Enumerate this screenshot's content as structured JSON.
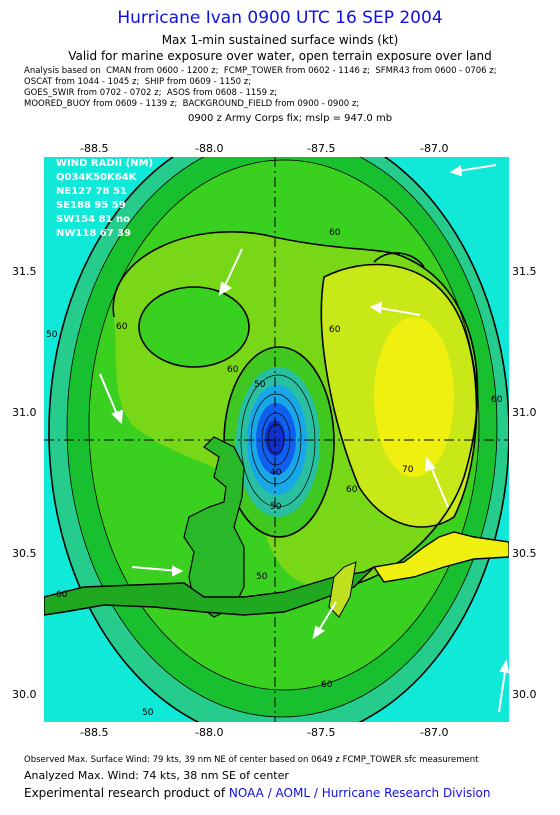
{
  "title": "Hurricane Ivan 0900 UTC 16 SEP 2004",
  "subtitle1": "Max 1-min sustained surface winds (kt)",
  "subtitle2": "Valid for marine exposure over water, open terrain exposure over land",
  "analysis_lines": [
    "Analysis based on  CMAN from 0600 - 1200 z;  FCMP_TOWER from 0602 - 1146 z;  SFMR43 from 0600 - 0706 z;",
    "OSCAT from 1044 - 1045 z;  SHIP from 0609 - 1150 z;",
    "GOES_SWIR from 0702 - 0702 z;  ASOS from 0608 - 1159 z;",
    "MOORED_BUOY from 0609 - 1139 z;  BACKGROUND_FIELD from 0900 - 0900 z;"
  ],
  "fix_line": "0900 z Army Corps fix; mslp = 947.0 mb",
  "wind_radii": {
    "header": "WIND RADII (NM)",
    "columns": "Q034K50K64K",
    "rows": [
      "NE127 78 51",
      "SE188 95 59",
      "SW154 81 no",
      "NW118 67 39"
    ]
  },
  "axes": {
    "lon_ticks": [
      "-88.5",
      "-88.0",
      "-87.5",
      "-87.0"
    ],
    "lat_ticks": [
      "31.5",
      "31.0",
      "30.5",
      "30.0"
    ]
  },
  "contour_labels": [
    "60",
    "60",
    "60",
    "60",
    "60",
    "60",
    "60",
    "50",
    "50",
    "50",
    "50",
    "50",
    "40",
    "70",
    "60"
  ],
  "colors": {
    "title": "#1010e0",
    "cyan": "#10e8d8",
    "green_dark": "#18c030",
    "green": "#3ad020",
    "green_light": "#78d818",
    "yellow_green": "#c8e818",
    "yellow": "#f0f010",
    "eye_blue": "#1060f0"
  },
  "footer": {
    "observed": "Observed Max. Surface Wind: 79 kts, 39 nm NE of center based on 0649 z FCMP_TOWER sfc measurement",
    "analyzed": "Analyzed Max. Wind: 74 kts, 38 nm SE of center",
    "product_prefix": "Experimental research product of ",
    "product_link": "NOAA / AOML / Hurricane Research Division"
  }
}
